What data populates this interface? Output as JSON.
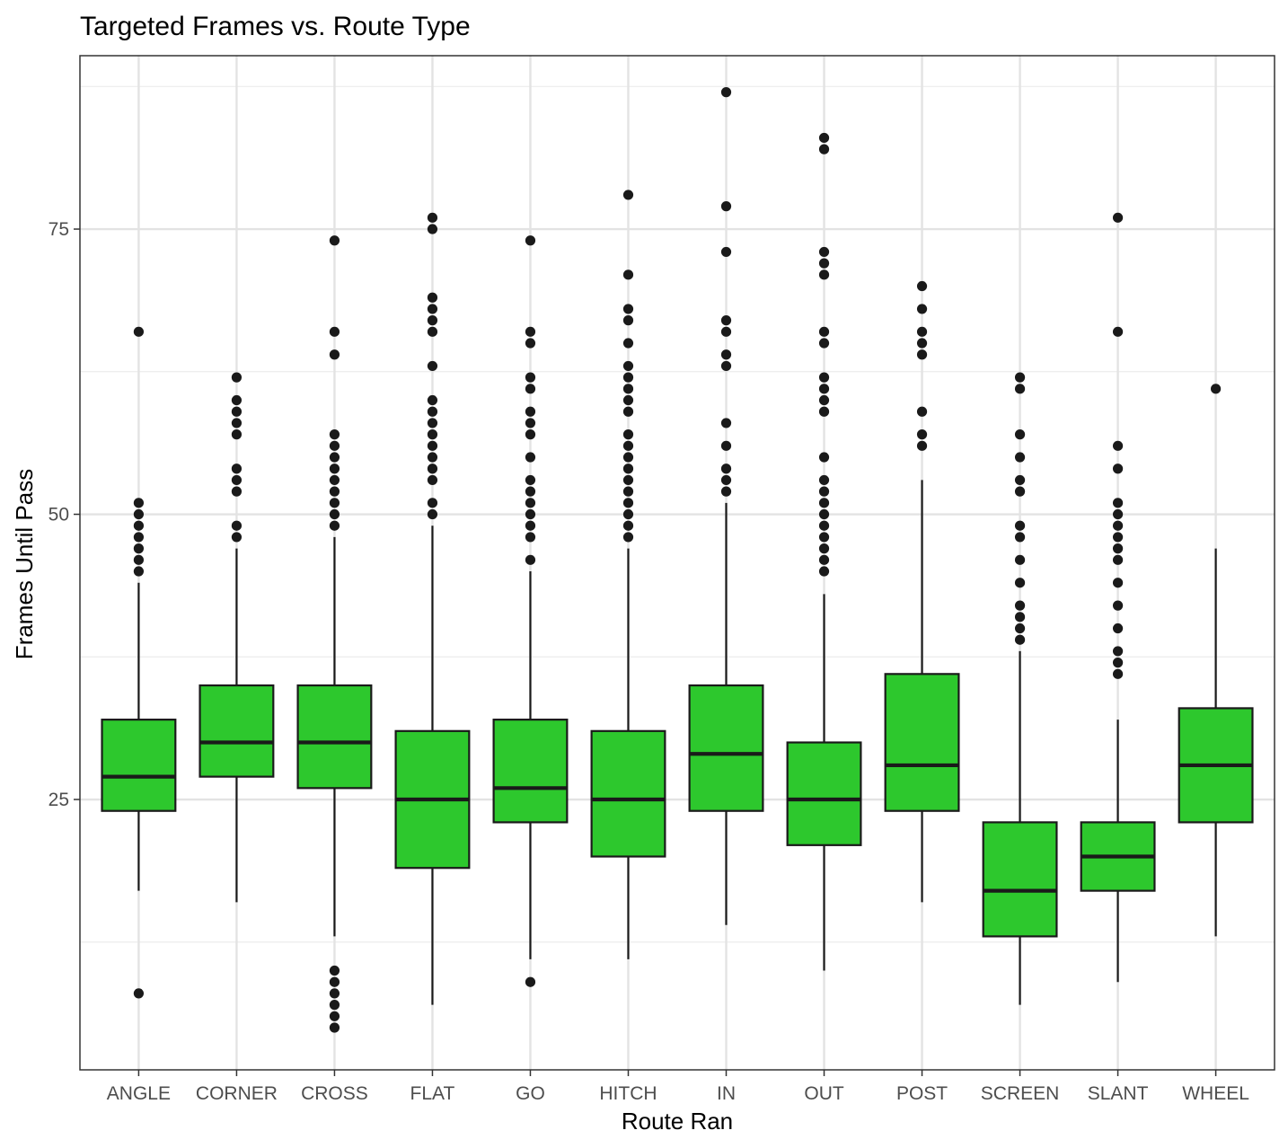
{
  "chart_data": {
    "type": "box",
    "title": "Targeted Frames vs. Route Type",
    "xlabel": "Route Ran",
    "ylabel": "Frames Until Pass",
    "ylim": [
      1.3,
      90.2
    ],
    "y_ticks": [
      25,
      50,
      75
    ],
    "y_minor_ticks": [
      12.5,
      37.5,
      62.5,
      87.5
    ],
    "grid": true,
    "fill_color": "#2DC82D",
    "categories": [
      "ANGLE",
      "CORNER",
      "CROSS",
      "FLAT",
      "GO",
      "HITCH",
      "IN",
      "OUT",
      "POST",
      "SCREEN",
      "SLANT",
      "WHEEL"
    ],
    "boxes": [
      {
        "category": "ANGLE",
        "whisker_low": 17,
        "q1": 24,
        "median": 27,
        "q3": 32,
        "whisker_high": 44,
        "outliers": [
          8,
          45,
          46,
          47,
          48,
          49,
          50,
          51,
          66
        ]
      },
      {
        "category": "CORNER",
        "whisker_low": 16,
        "q1": 27,
        "median": 30,
        "q3": 35,
        "whisker_high": 47,
        "outliers": [
          48,
          49,
          52,
          53,
          54,
          57,
          58,
          59,
          60,
          62
        ]
      },
      {
        "category": "CROSS",
        "whisker_low": 13,
        "q1": 26,
        "median": 30,
        "q3": 35,
        "whisker_high": 48,
        "outliers": [
          5,
          6,
          7,
          8,
          9,
          10,
          49,
          50,
          51,
          52,
          53,
          54,
          55,
          56,
          57,
          64,
          66,
          74
        ]
      },
      {
        "category": "FLAT",
        "whisker_low": 7,
        "q1": 19,
        "median": 25,
        "q3": 31,
        "whisker_high": 49,
        "outliers": [
          50,
          51,
          53,
          54,
          55,
          56,
          57,
          58,
          59,
          60,
          63,
          66,
          67,
          68,
          69,
          75,
          76
        ]
      },
      {
        "category": "GO",
        "whisker_low": 11,
        "q1": 23,
        "median": 26,
        "q3": 32,
        "whisker_high": 45,
        "outliers": [
          9,
          46,
          48,
          49,
          50,
          51,
          52,
          53,
          55,
          57,
          58,
          59,
          61,
          62,
          65,
          66,
          74
        ]
      },
      {
        "category": "HITCH",
        "whisker_low": 11,
        "q1": 20,
        "median": 25,
        "q3": 31,
        "whisker_high": 47,
        "outliers": [
          48,
          49,
          50,
          51,
          52,
          53,
          54,
          55,
          56,
          57,
          59,
          60,
          61,
          62,
          63,
          65,
          67,
          68,
          71,
          78
        ]
      },
      {
        "category": "IN",
        "whisker_low": 14,
        "q1": 24,
        "median": 29,
        "q3": 35,
        "whisker_high": 51,
        "outliers": [
          52,
          53,
          54,
          56,
          58,
          63,
          64,
          66,
          67,
          73,
          77,
          87
        ]
      },
      {
        "category": "OUT",
        "whisker_low": 10,
        "q1": 21,
        "median": 25,
        "q3": 30,
        "whisker_high": 43,
        "outliers": [
          45,
          46,
          47,
          48,
          49,
          50,
          51,
          52,
          53,
          55,
          59,
          60,
          61,
          62,
          65,
          66,
          71,
          72,
          73,
          82,
          83
        ]
      },
      {
        "category": "POST",
        "whisker_low": 16,
        "q1": 24,
        "median": 28,
        "q3": 36,
        "whisker_high": 53,
        "outliers": [
          56,
          57,
          59,
          64,
          65,
          66,
          68,
          70
        ]
      },
      {
        "category": "SCREEN",
        "whisker_low": 7,
        "q1": 13,
        "median": 17,
        "q3": 23,
        "whisker_high": 38,
        "outliers": [
          39,
          40,
          41,
          42,
          44,
          46,
          48,
          49,
          52,
          53,
          55,
          57,
          61,
          62
        ]
      },
      {
        "category": "SLANT",
        "whisker_low": 9,
        "q1": 17,
        "median": 20,
        "q3": 23,
        "whisker_high": 32,
        "outliers": [
          36,
          37,
          38,
          40,
          42,
          44,
          46,
          47,
          48,
          49,
          50,
          51,
          54,
          56,
          66,
          76
        ]
      },
      {
        "category": "WHEEL",
        "whisker_low": 13,
        "q1": 23,
        "median": 28,
        "q3": 33,
        "whisker_high": 47,
        "outliers": [
          61
        ]
      }
    ]
  }
}
